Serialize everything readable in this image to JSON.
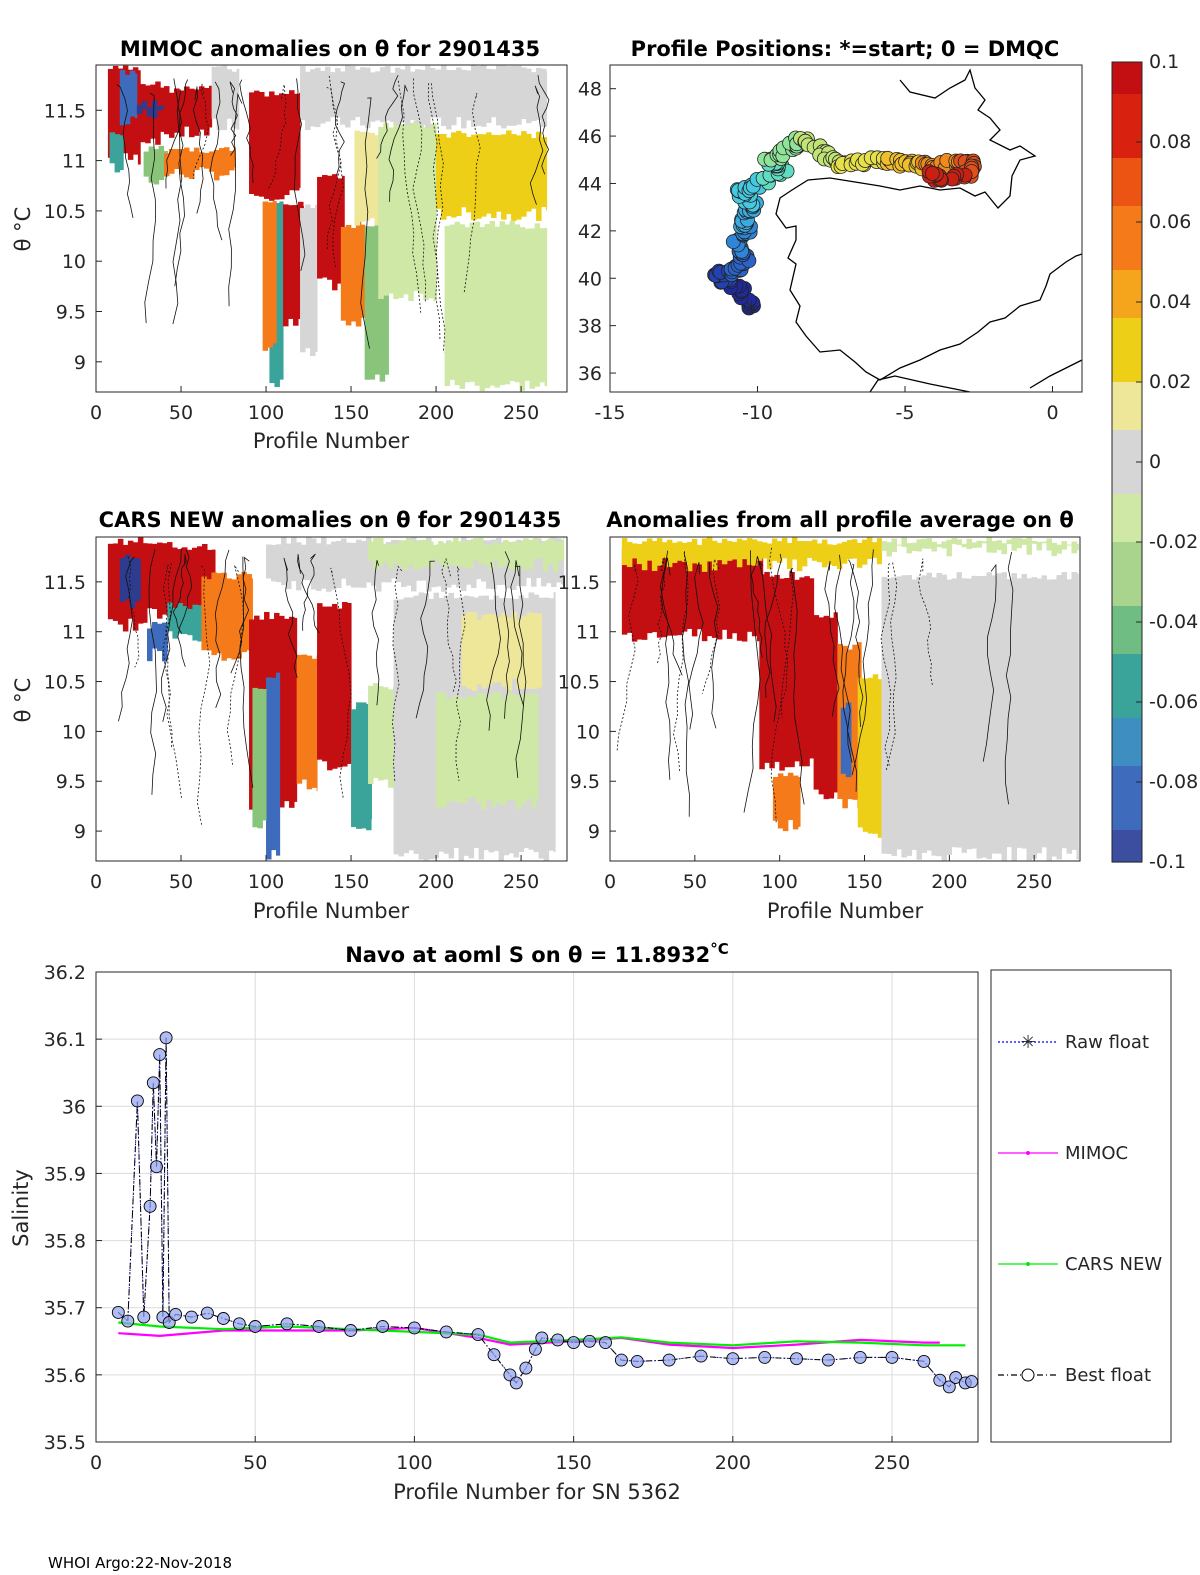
{
  "footer": "WHOI Argo:22-Nov-2018",
  "colorbar": {
    "ticks": [
      "0.1",
      "0.08",
      "0.06",
      "0.04",
      "0.02",
      "0",
      "-0.02",
      "-0.04",
      "-0.06",
      "-0.08",
      "-0.1"
    ],
    "range": [
      -0.1,
      0.1
    ]
  },
  "colors": {
    "red": "#c40f12",
    "orange": "#f47a1a",
    "yellow": "#eecf17",
    "paleyellow": "#eee79a",
    "grey": "#d6d6d6",
    "lightgreen": "#cfe8a6",
    "green": "#89c47a",
    "teal": "#3aa39a",
    "blue": "#3f6bbd",
    "darkblue": "#2d3c8e",
    "axis": "#262626",
    "grid": "#dcdcdc",
    "magenta": "#ff00ff",
    "lime": "#00ee00",
    "rawblue": "#0000ff"
  },
  "chart_data": [
    {
      "id": "mimoc",
      "type": "heatmap",
      "title": "MIMOC anomalies on θ  for 2901435",
      "xlabel": "Profile Number",
      "ylabel": "θ °C",
      "xlim": [
        0,
        277
      ],
      "ylim": [
        8.7,
        11.95
      ],
      "xticks": [
        "0",
        "50",
        "100",
        "150",
        "200",
        "250"
      ],
      "xtickvals": [
        0,
        50,
        100,
        150,
        200,
        250
      ],
      "yticks": [
        "9",
        "9.5",
        "10",
        "10.5",
        "11",
        "11.5"
      ],
      "ytickvals": [
        9,
        9.5,
        10,
        10.5,
        11,
        11.5
      ],
      "regions": [
        {
          "x": [
            7,
            26
          ],
          "y": [
            10.95,
            11.95
          ],
          "c": "red"
        },
        {
          "x": [
            26,
            40
          ],
          "y": [
            11.15,
            11.8
          ],
          "c": "red"
        },
        {
          "x": [
            40,
            68
          ],
          "y": [
            11.2,
            11.75
          ],
          "c": "red"
        },
        {
          "x": [
            8,
            16
          ],
          "y": [
            10.85,
            11.3
          ],
          "c": "teal"
        },
        {
          "x": [
            28,
            42
          ],
          "y": [
            10.75,
            11.15
          ],
          "c": "green"
        },
        {
          "x": [
            40,
            82
          ],
          "y": [
            10.8,
            11.15
          ],
          "c": "orange"
        },
        {
          "x": [
            14,
            24
          ],
          "y": [
            11.3,
            11.9
          ],
          "c": "blue"
        },
        {
          "x": [
            24,
            40
          ],
          "y": [
            11.4,
            11.6
          ],
          "c": "darkblue"
        },
        {
          "x": [
            68,
            84
          ],
          "y": [
            11.3,
            11.95
          ],
          "c": "grey"
        },
        {
          "x": [
            90,
            120
          ],
          "y": [
            10.6,
            11.7
          ],
          "c": "red"
        },
        {
          "x": [
            102,
            110
          ],
          "y": [
            8.7,
            10.6
          ],
          "c": "teal"
        },
        {
          "x": [
            98,
            106
          ],
          "y": [
            9.1,
            10.6
          ],
          "c": "orange"
        },
        {
          "x": [
            110,
            122
          ],
          "y": [
            9.3,
            10.6
          ],
          "c": "red"
        },
        {
          "x": [
            120,
            130
          ],
          "y": [
            9.0,
            10.6
          ],
          "c": "grey"
        },
        {
          "x": [
            130,
            146
          ],
          "y": [
            9.7,
            10.9
          ],
          "c": "red"
        },
        {
          "x": [
            144,
            158
          ],
          "y": [
            9.3,
            10.4
          ],
          "c": "orange"
        },
        {
          "x": [
            158,
            172
          ],
          "y": [
            8.8,
            10.4
          ],
          "c": "green"
        },
        {
          "x": [
            152,
            166
          ],
          "y": [
            10.3,
            11.3
          ],
          "c": "paleyellow"
        },
        {
          "x": [
            166,
            200
          ],
          "y": [
            9.6,
            11.4
          ],
          "c": "lightgreen"
        },
        {
          "x": [
            120,
            200
          ],
          "y": [
            11.3,
            11.95
          ],
          "c": "grey"
        },
        {
          "x": [
            200,
            265
          ],
          "y": [
            10.4,
            11.3
          ],
          "c": "yellow"
        },
        {
          "x": [
            200,
            265
          ],
          "y": [
            11.3,
            11.95
          ],
          "c": "grey"
        },
        {
          "x": [
            205,
            265
          ],
          "y": [
            8.7,
            10.4
          ],
          "c": "lightgreen"
        }
      ]
    },
    {
      "id": "positions",
      "type": "scatter",
      "title": "Profile Positions: *=start; 0 = DMQC",
      "xlim": [
        -15,
        1
      ],
      "ylim": [
        35.2,
        49
      ],
      "xticks": [
        "-15",
        "-10",
        "-5",
        "0"
      ],
      "xtickvals": [
        -15,
        -10,
        -5,
        0
      ],
      "yticks": [
        "36",
        "38",
        "40",
        "42",
        "44",
        "46",
        "48"
      ],
      "ytickvals": [
        36,
        38,
        40,
        42,
        44,
        46,
        48
      ],
      "track": [
        [
          -10.2,
          38.8
        ],
        [
          -10.5,
          39.4
        ],
        [
          -11.1,
          39.9
        ],
        [
          -11.4,
          40.1
        ],
        [
          -10.8,
          40.3
        ],
        [
          -10.4,
          40.8
        ],
        [
          -10.8,
          41.5
        ],
        [
          -10.3,
          42.0
        ],
        [
          -10.5,
          42.5
        ],
        [
          -10.1,
          43.0
        ],
        [
          -10.6,
          43.6
        ],
        [
          -10.0,
          44.0
        ],
        [
          -9.1,
          44.6
        ],
        [
          -9.6,
          45.0
        ],
        [
          -8.9,
          45.4
        ],
        [
          -8.4,
          45.9
        ],
        [
          -7.7,
          45.2
        ],
        [
          -7.0,
          44.8
        ],
        [
          -6.2,
          45.0
        ],
        [
          -5.4,
          44.9
        ],
        [
          -4.6,
          44.8
        ],
        [
          -3.9,
          44.7
        ],
        [
          -3.2,
          44.9
        ],
        [
          -2.7,
          44.8
        ],
        [
          -2.9,
          44.4
        ],
        [
          -3.8,
          44.2
        ],
        [
          -4.2,
          44.5
        ]
      ],
      "start": [
        -10.2,
        38.8
      ]
    },
    {
      "id": "cars",
      "type": "heatmap",
      "title": "CARS NEW anomalies on θ for 2901435",
      "xlabel": "Profile Number",
      "ylabel": "θ °C",
      "xlim": [
        0,
        277
      ],
      "ylim": [
        8.7,
        11.95
      ],
      "xticks": [
        "0",
        "50",
        "100",
        "150",
        "200",
        "250"
      ],
      "xtickvals": [
        0,
        50,
        100,
        150,
        200,
        250
      ],
      "yticks": [
        "9",
        "9.5",
        "10",
        "10.5",
        "11",
        "11.5"
      ],
      "ytickvals": [
        9,
        9.5,
        10,
        10.5,
        11,
        11.5
      ],
      "regions": [
        {
          "x": [
            7,
            30
          ],
          "y": [
            11.0,
            11.95
          ],
          "c": "red"
        },
        {
          "x": [
            30,
            70
          ],
          "y": [
            11.1,
            11.9
          ],
          "c": "red"
        },
        {
          "x": [
            30,
            42
          ],
          "y": [
            10.7,
            11.1
          ],
          "c": "blue"
        },
        {
          "x": [
            14,
            26
          ],
          "y": [
            11.2,
            11.8
          ],
          "c": "darkblue"
        },
        {
          "x": [
            42,
            62
          ],
          "y": [
            10.9,
            11.3
          ],
          "c": "teal"
        },
        {
          "x": [
            62,
            92
          ],
          "y": [
            10.7,
            11.6
          ],
          "c": "orange"
        },
        {
          "x": [
            90,
            118
          ],
          "y": [
            9.2,
            11.2
          ],
          "c": "red"
        },
        {
          "x": [
            100,
            108
          ],
          "y": [
            8.7,
            10.6
          ],
          "c": "blue"
        },
        {
          "x": [
            92,
            100
          ],
          "y": [
            9.0,
            10.5
          ],
          "c": "green"
        },
        {
          "x": [
            118,
            130
          ],
          "y": [
            9.4,
            10.8
          ],
          "c": "orange"
        },
        {
          "x": [
            130,
            150
          ],
          "y": [
            9.6,
            11.3
          ],
          "c": "red"
        },
        {
          "x": [
            150,
            162
          ],
          "y": [
            9.0,
            10.3
          ],
          "c": "teal"
        },
        {
          "x": [
            160,
            175
          ],
          "y": [
            9.4,
            10.5
          ],
          "c": "lightgreen"
        },
        {
          "x": [
            175,
            270
          ],
          "y": [
            8.7,
            11.4
          ],
          "c": "grey"
        },
        {
          "x": [
            200,
            260
          ],
          "y": [
            9.2,
            10.4
          ],
          "c": "lightgreen"
        },
        {
          "x": [
            215,
            262
          ],
          "y": [
            10.4,
            11.2
          ],
          "c": "paleyellow"
        },
        {
          "x": [
            100,
            275
          ],
          "y": [
            11.4,
            11.95
          ],
          "c": "grey"
        },
        {
          "x": [
            160,
            275
          ],
          "y": [
            11.6,
            11.95
          ],
          "c": "lightgreen"
        }
      ]
    },
    {
      "id": "allavg",
      "type": "heatmap",
      "title": "Anomalies from all profile average on θ",
      "xlabel": "Profile Number",
      "xlim": [
        0,
        277
      ],
      "ylim": [
        8.7,
        11.95
      ],
      "xticks": [
        "0",
        "50",
        "100",
        "150",
        "200",
        "250"
      ],
      "xtickvals": [
        0,
        50,
        100,
        150,
        200,
        250
      ],
      "yticks": [
        "9",
        "9.5",
        "10",
        "10.5",
        "11",
        "11.5"
      ],
      "ytickvals": [
        9,
        9.5,
        10,
        10.5,
        11,
        11.5
      ],
      "regions": [
        {
          "x": [
            7,
            90
          ],
          "y": [
            10.9,
            11.85
          ],
          "c": "red"
        },
        {
          "x": [
            88,
            120
          ],
          "y": [
            9.6,
            11.6
          ],
          "c": "red"
        },
        {
          "x": [
            96,
            112
          ],
          "y": [
            9.0,
            9.6
          ],
          "c": "orange"
        },
        {
          "x": [
            120,
            134
          ],
          "y": [
            9.3,
            11.2
          ],
          "c": "red"
        },
        {
          "x": [
            134,
            148
          ],
          "y": [
            9.2,
            10.9
          ],
          "c": "orange"
        },
        {
          "x": [
            136,
            142
          ],
          "y": [
            9.5,
            10.3
          ],
          "c": "blue"
        },
        {
          "x": [
            146,
            160
          ],
          "y": [
            8.9,
            10.6
          ],
          "c": "yellow"
        },
        {
          "x": [
            160,
            276
          ],
          "y": [
            8.7,
            11.6
          ],
          "c": "grey"
        },
        {
          "x": [
            7,
            160
          ],
          "y": [
            11.6,
            11.95
          ],
          "c": "yellow"
        },
        {
          "x": [
            160,
            276
          ],
          "y": [
            11.75,
            11.95
          ],
          "c": "lightgreen"
        }
      ]
    },
    {
      "id": "salinity",
      "type": "line",
      "title": "Navo at aoml S on θ = 11.8932",
      "title_unit": "°C",
      "xlabel": "Profile Number for SN 5362",
      "ylabel": "Salinity",
      "xlim": [
        0,
        277
      ],
      "ylim": [
        35.5,
        36.2
      ],
      "xticks": [
        "0",
        "50",
        "100",
        "150",
        "200",
        "250"
      ],
      "xtickvals": [
        0,
        50,
        100,
        150,
        200,
        250
      ],
      "yticks": [
        "35.5",
        "35.6",
        "35.7",
        "35.8",
        "35.9",
        "36",
        "36.1",
        "36.2"
      ],
      "ytickvals": [
        35.5,
        35.6,
        35.7,
        35.8,
        35.9,
        36,
        36.1,
        36.2
      ],
      "legend": [
        "Raw float",
        "MIMOC",
        "CARS NEW",
        "Best float"
      ],
      "series": [
        {
          "name": "MIMOC",
          "color": "magenta",
          "x": [
            7,
            20,
            40,
            60,
            80,
            100,
            120,
            130,
            150,
            165,
            180,
            200,
            220,
            240,
            260,
            265
          ],
          "y": [
            35.662,
            35.658,
            35.666,
            35.666,
            35.666,
            35.67,
            35.655,
            35.645,
            35.65,
            35.655,
            35.645,
            35.64,
            35.645,
            35.652,
            35.648,
            35.648
          ]
        },
        {
          "name": "CARS NEW",
          "color": "lime",
          "x": [
            7,
            20,
            40,
            60,
            80,
            100,
            120,
            130,
            150,
            165,
            180,
            200,
            220,
            240,
            260,
            273
          ],
          "y": [
            35.678,
            35.672,
            35.668,
            35.672,
            35.668,
            35.664,
            35.66,
            35.648,
            35.652,
            35.656,
            35.648,
            35.644,
            35.65,
            35.648,
            35.644,
            35.644
          ]
        },
        {
          "name": "Best float",
          "color": "#000",
          "x": [
            7,
            10,
            13,
            15,
            17,
            18,
            19,
            20,
            21,
            22,
            23,
            25,
            30,
            35,
            40,
            45,
            50,
            60,
            70,
            80,
            90,
            100,
            110,
            120,
            125,
            130,
            132,
            135,
            138,
            140,
            145,
            150,
            155,
            160,
            165,
            170,
            180,
            190,
            200,
            210,
            220,
            230,
            240,
            250,
            260,
            265,
            268,
            270,
            273,
            275
          ],
          "y": [
            35.693,
            35.68,
            36.008,
            35.686,
            35.851,
            36.035,
            35.91,
            36.077,
            35.686,
            36.102,
            35.678,
            35.69,
            35.686,
            35.692,
            35.684,
            35.676,
            35.672,
            35.676,
            35.672,
            35.666,
            35.672,
            35.67,
            35.664,
            35.66,
            35.63,
            35.6,
            35.588,
            35.61,
            35.638,
            35.655,
            35.652,
            35.648,
            35.65,
            35.648,
            35.622,
            35.62,
            35.622,
            35.628,
            35.624,
            35.626,
            35.624,
            35.622,
            35.626,
            35.626,
            35.62,
            35.592,
            35.582,
            35.596,
            35.588,
            35.59
          ]
        }
      ]
    }
  ]
}
